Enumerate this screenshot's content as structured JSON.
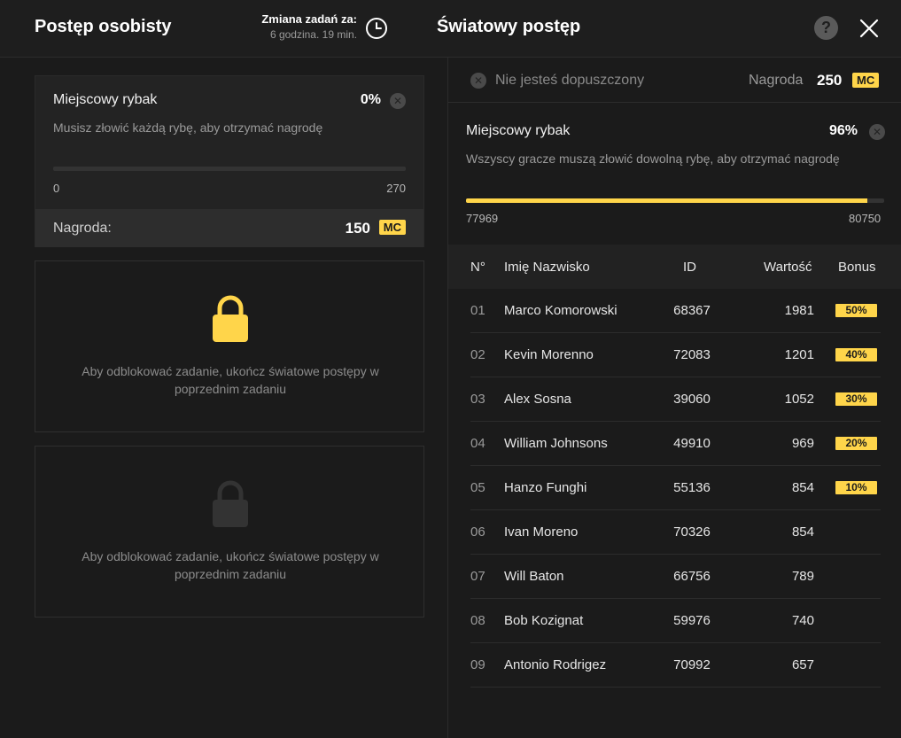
{
  "header": {
    "personal_title": "Postęp osobisty",
    "timer_label": "Zmiana zadań za:",
    "timer_value": "6 godzina. 19 min.",
    "world_title": "Światowy postęp",
    "help_label": "?"
  },
  "personal": {
    "task": {
      "title": "Miejscowy rybak",
      "percent": "0%",
      "description": "Musisz złowić każdą rybę, aby otrzymać nagrodę",
      "progress_fraction": 0,
      "range_min": "0",
      "range_max": "270",
      "reward_label": "Nagroda:",
      "reward_value": "150",
      "currency": "MC"
    },
    "locked_tasks": [
      {
        "text": "Aby odblokować zadanie, ukończ światowe postępy w poprzednim zadaniu",
        "lock_color": "#ffd54a"
      },
      {
        "text": "Aby odblokować zadanie, ukończ światowe postępy w poprzednim zadaniu",
        "lock_color": "#333333"
      }
    ]
  },
  "world": {
    "eligibility_text": "Nie jesteś dopuszczony",
    "reward_label": "Nagroda",
    "reward_value": "250",
    "currency": "MC",
    "task": {
      "title": "Miejscowy rybak",
      "percent": "96%",
      "description": "Wszyscy gracze muszą złowić dowolną rybę, aby otrzymać nagrodę",
      "progress_fraction": 0.96,
      "range_min": "77969",
      "range_max": "80750"
    },
    "table": {
      "headers": {
        "num": "N°",
        "name": "Imię Nazwisko",
        "id": "ID",
        "value": "Wartość",
        "bonus": "Bonus"
      },
      "rows": [
        {
          "num": "01",
          "name": "Marco Komorowski",
          "id": "68367",
          "value": "1981",
          "bonus": "50%"
        },
        {
          "num": "02",
          "name": "Kevin Morenno",
          "id": "72083",
          "value": "1201",
          "bonus": "40%"
        },
        {
          "num": "03",
          "name": "Alex Sosna",
          "id": "39060",
          "value": "1052",
          "bonus": "30%"
        },
        {
          "num": "04",
          "name": "William Johnsons",
          "id": "49910",
          "value": "969",
          "bonus": "20%"
        },
        {
          "num": "05",
          "name": "Hanzo Funghi",
          "id": "55136",
          "value": "854",
          "bonus": "10%"
        },
        {
          "num": "06",
          "name": "Ivan Moreno",
          "id": "70326",
          "value": "854",
          "bonus": ""
        },
        {
          "num": "07",
          "name": "Will Baton",
          "id": "66756",
          "value": "789",
          "bonus": ""
        },
        {
          "num": "08",
          "name": "Bob Kozignat",
          "id": "59976",
          "value": "740",
          "bonus": ""
        },
        {
          "num": "09",
          "name": "Antonio Rodrigez",
          "id": "70992",
          "value": "657",
          "bonus": ""
        }
      ]
    }
  },
  "colors": {
    "accent": "#ffd54a",
    "background": "#1b1b1b"
  }
}
